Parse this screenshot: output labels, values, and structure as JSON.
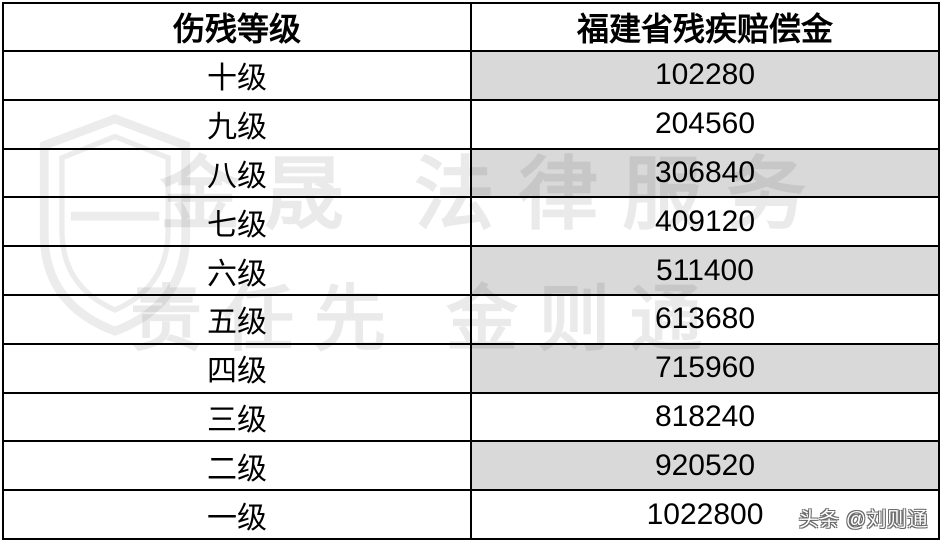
{
  "table": {
    "columns": [
      "伤残等级",
      "福建省残疾赔偿金"
    ],
    "rows": [
      {
        "level": "十级",
        "amount": "102280",
        "shaded": true
      },
      {
        "level": "九级",
        "amount": "204560",
        "shaded": false
      },
      {
        "level": "八级",
        "amount": "306840",
        "shaded": true
      },
      {
        "level": "七级",
        "amount": "409120",
        "shaded": false
      },
      {
        "level": "六级",
        "amount": "511400",
        "shaded": true
      },
      {
        "level": "五级",
        "amount": "613680",
        "shaded": false
      },
      {
        "level": "四级",
        "amount": "715960",
        "shaded": true
      },
      {
        "level": "三级",
        "amount": "818240",
        "shaded": false
      },
      {
        "level": "二级",
        "amount": "920520",
        "shaded": true
      },
      {
        "level": "一级",
        "amount": "1022800",
        "shaded": false
      }
    ],
    "header_fontsize": 32,
    "cell_fontsize": 30,
    "border_color": "#000000",
    "row_bg_default": "#ffffff",
    "row_bg_alt": "#d9d9d9",
    "text_color": "#000000"
  },
  "watermark": {
    "line1": "金晟 法律服务",
    "line2": "责任先    金则通",
    "opacity": 0.08,
    "color": "#000000"
  },
  "attribution": "头条 @刘则通"
}
